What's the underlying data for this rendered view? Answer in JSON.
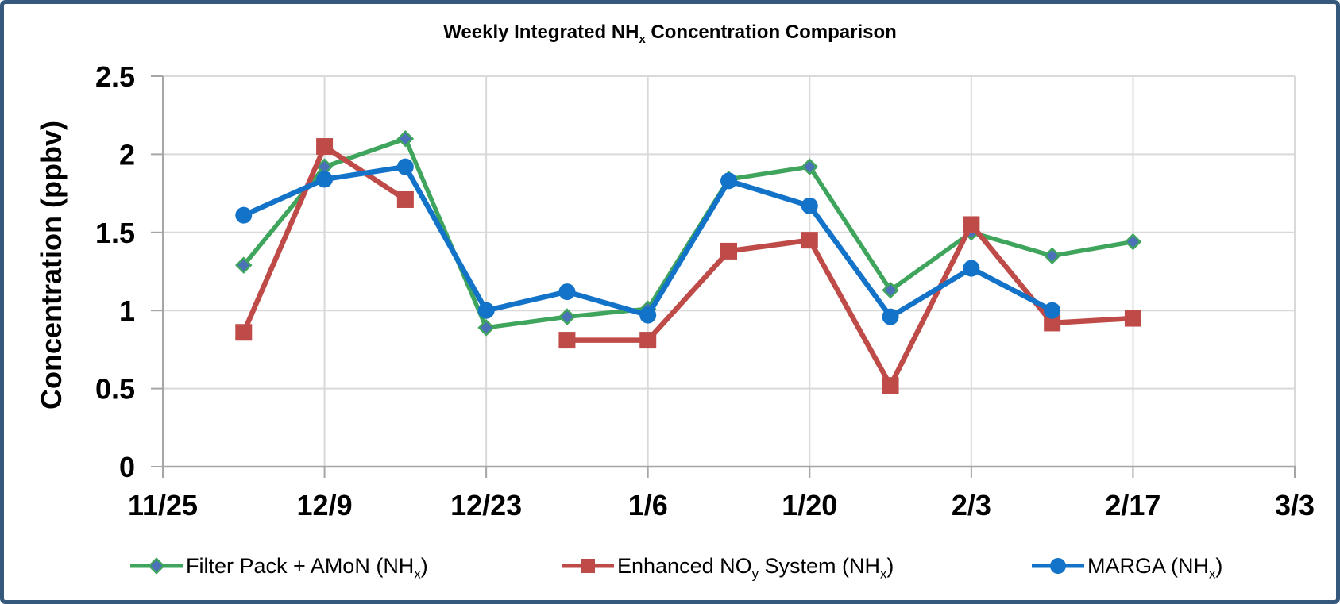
{
  "window": {
    "background": "#ffffff",
    "border_color": "#35597d"
  },
  "chart_data": {
    "type": "line",
    "title_plain": "Weekly Integrated NHx Concentration Comparison",
    "title_segments": [
      {
        "text": "Weekly Integrated NH"
      },
      {
        "text": "x",
        "sub": true
      },
      {
        "text": " Concentration Comparison"
      }
    ],
    "ylabel": "Concentration (ppbv)",
    "ylim": [
      0,
      2.5
    ],
    "y_ticks": [
      {
        "value": 0,
        "label": "0"
      },
      {
        "value": 0.5,
        "label": "0.5"
      },
      {
        "value": 1,
        "label": "1"
      },
      {
        "value": 1.5,
        "label": "1.5"
      },
      {
        "value": 2,
        "label": "2"
      },
      {
        "value": 2.5,
        "label": "2.5"
      }
    ],
    "x_ticks": [
      {
        "day": 0,
        "label": "11/25"
      },
      {
        "day": 14,
        "label": "12/9"
      },
      {
        "day": 28,
        "label": "12/23"
      },
      {
        "day": 42,
        "label": "1/6"
      },
      {
        "day": 56,
        "label": "1/20"
      },
      {
        "day": 70,
        "label": "2/3"
      },
      {
        "day": 84,
        "label": "2/17"
      },
      {
        "day": 98,
        "label": "3/3"
      }
    ],
    "x_days": [
      7,
      14,
      21,
      28,
      35,
      42,
      49,
      56,
      63,
      70,
      77,
      84
    ],
    "grid": true,
    "gridline_color": "#d9d9d9",
    "axis_color": "#a6a6a6",
    "text_color": "#000000",
    "legend_position": "bottom",
    "series": [
      {
        "name_plain": "Filter Pack + AMoN (NHx)",
        "name_segments": [
          {
            "text": "Filter Pack + AMoN (NH"
          },
          {
            "text": "x",
            "sub": true
          },
          {
            "text": ")"
          }
        ],
        "color": "#3fa45c",
        "marker": "diamond",
        "marker_fill": "#4b72b8",
        "marker_stroke": "#3fa45c",
        "stroke_width": 5.5,
        "values": [
          1.29,
          1.92,
          2.1,
          0.89,
          0.96,
          1.01,
          1.84,
          1.92,
          1.13,
          1.5,
          1.35,
          1.44
        ]
      },
      {
        "name_plain": "Enhanced NOy System (NHx)",
        "name_segments": [
          {
            "text": "Enhanced NO"
          },
          {
            "text": "y",
            "sub": true
          },
          {
            "text": " System (NH"
          },
          {
            "text": "x",
            "sub": true
          },
          {
            "text": ")"
          }
        ],
        "color": "#bf4b48",
        "marker": "square",
        "marker_fill": "#bf4b48",
        "marker_stroke": "#bf4b48",
        "stroke_width": 6.5,
        "values": [
          0.86,
          2.05,
          1.71,
          null,
          0.81,
          0.81,
          1.38,
          1.45,
          0.52,
          1.55,
          0.92,
          0.95
        ]
      },
      {
        "name_plain": "MARGA (NHx)",
        "name_segments": [
          {
            "text": "MARGA (NH"
          },
          {
            "text": "x",
            "sub": true
          },
          {
            "text": ")"
          }
        ],
        "color": "#1273c8",
        "marker": "circle",
        "marker_fill": "#1273c8",
        "marker_stroke": "#1273c8",
        "stroke_width": 6.5,
        "values": [
          1.61,
          1.84,
          1.92,
          1.0,
          1.12,
          0.97,
          1.83,
          1.67,
          0.96,
          1.27,
          1.0,
          null
        ]
      }
    ]
  }
}
